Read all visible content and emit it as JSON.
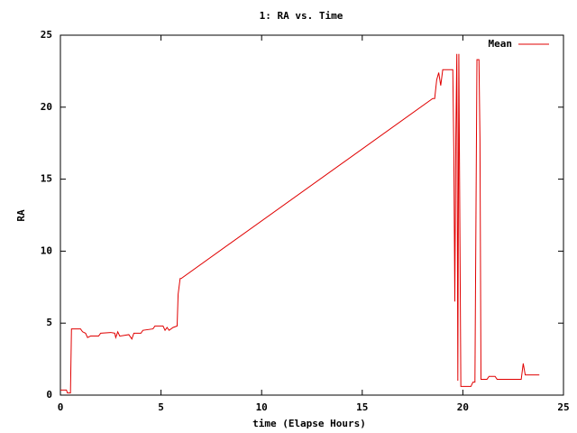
{
  "chart_data": {
    "type": "line",
    "title": "1: RA vs. Time",
    "xlabel": "time (Elapse Hours)",
    "ylabel": "RA",
    "xlim": [
      0,
      25
    ],
    "xticks": [
      0,
      5,
      10,
      15,
      20,
      25
    ],
    "ylim": [
      0,
      25
    ],
    "yticks": [
      0,
      5,
      10,
      15,
      20,
      25
    ],
    "legend": "top-right",
    "series": [
      {
        "name": "Mean",
        "color": "#e00000",
        "x": [
          0,
          0.3,
          0.35,
          0.5,
          0.55,
          1.0,
          1.1,
          1.25,
          1.35,
          1.5,
          1.9,
          2.0,
          2.5,
          2.7,
          2.75,
          2.85,
          2.95,
          3.4,
          3.55,
          3.65,
          4.0,
          4.1,
          4.6,
          4.7,
          5.1,
          5.2,
          5.3,
          5.4,
          5.6,
          5.8,
          5.85,
          5.95,
          6.0,
          18.5,
          18.6,
          18.7,
          18.8,
          18.9,
          19.0,
          19.5,
          19.55,
          19.6,
          19.65,
          19.7,
          19.75,
          19.8,
          19.85,
          19.9,
          20.4,
          20.5,
          20.6,
          20.7,
          20.8,
          20.85,
          20.9,
          21.2,
          21.3,
          21.6,
          21.7,
          22.0,
          22.9,
          23.0,
          23.1,
          23.8
        ],
        "values": [
          0.35,
          0.35,
          0.15,
          0.15,
          4.6,
          4.6,
          4.4,
          4.3,
          4.0,
          4.1,
          4.1,
          4.3,
          4.35,
          4.3,
          4.0,
          4.4,
          4.1,
          4.2,
          3.9,
          4.3,
          4.3,
          4.5,
          4.6,
          4.8,
          4.8,
          4.5,
          4.7,
          4.5,
          4.7,
          4.8,
          7.0,
          8.1,
          8.1,
          20.6,
          20.6,
          21.9,
          22.4,
          21.5,
          22.6,
          22.6,
          17,
          6.5,
          18,
          23.7,
          1.0,
          23.7,
          12,
          0.6,
          0.6,
          0.9,
          0.9,
          23.3,
          23.3,
          17.8,
          1.1,
          1.1,
          1.3,
          1.3,
          1.1,
          1.1,
          1.1,
          2.2,
          1.4,
          1.4
        ]
      }
    ]
  }
}
